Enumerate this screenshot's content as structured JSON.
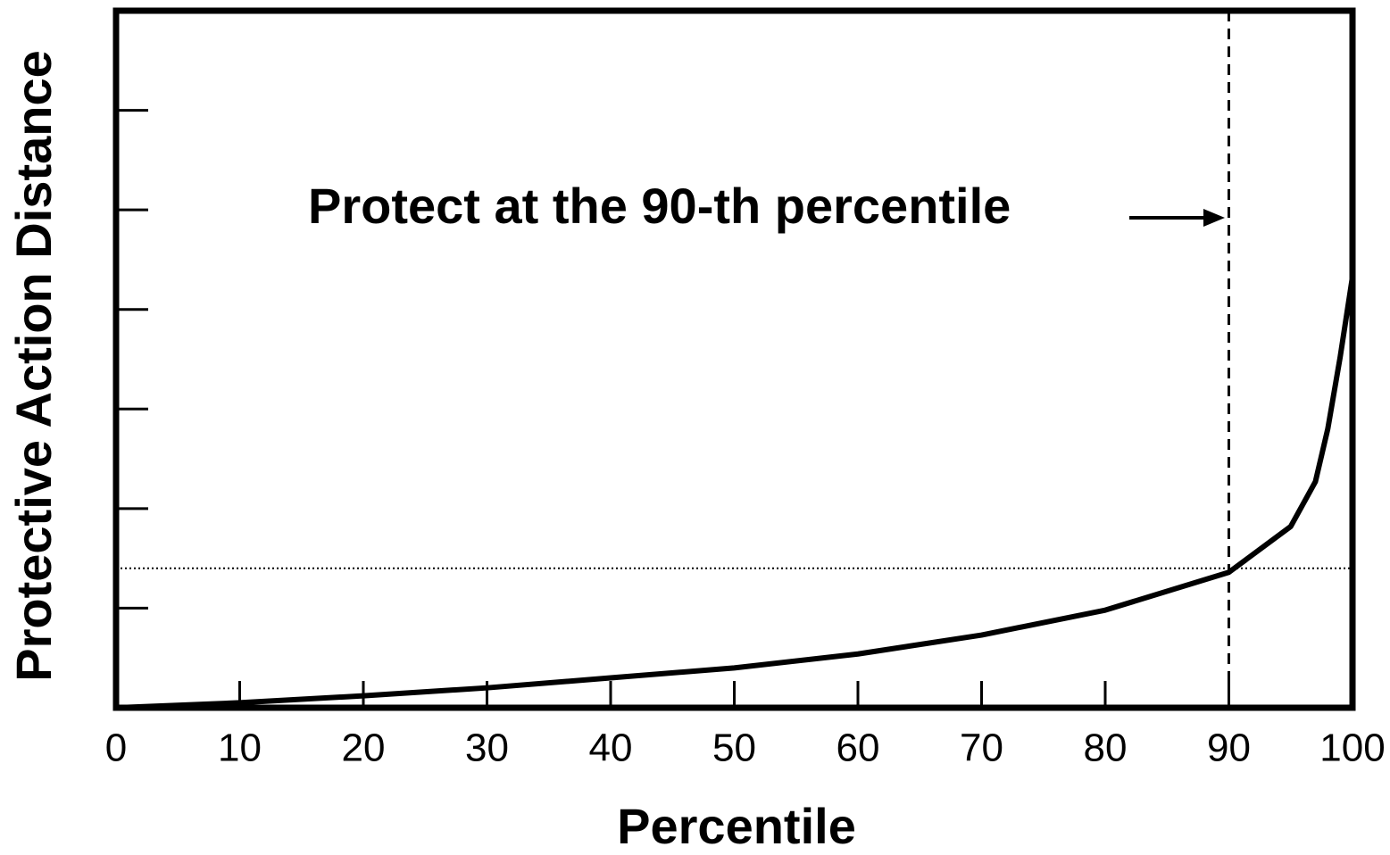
{
  "chart_data": {
    "type": "line",
    "xlabel": "Percentile",
    "ylabel": "Protective Action Distance",
    "annotation": "Protect at the 90-th percentile",
    "x": [
      0,
      10,
      20,
      30,
      40,
      50,
      60,
      70,
      80,
      90,
      95,
      97,
      98,
      99,
      100
    ],
    "series": [
      {
        "name": null,
        "color": "#000000",
        "values": [
          0,
          0.05,
          0.12,
          0.2,
          0.3,
          0.4,
          0.54,
          0.73,
          0.98,
          1.36,
          1.82,
          2.27,
          2.8,
          3.52,
          4.33
        ]
      }
    ],
    "xlim": [
      0,
      100
    ],
    "xticks": [
      0,
      10,
      20,
      30,
      40,
      50,
      60,
      70,
      80,
      90,
      100
    ],
    "ylim": [
      0,
      7
    ],
    "yticks": [
      1,
      2,
      3,
      4,
      5,
      6
    ],
    "reference_x": 90,
    "reference_y": 1.4
  }
}
